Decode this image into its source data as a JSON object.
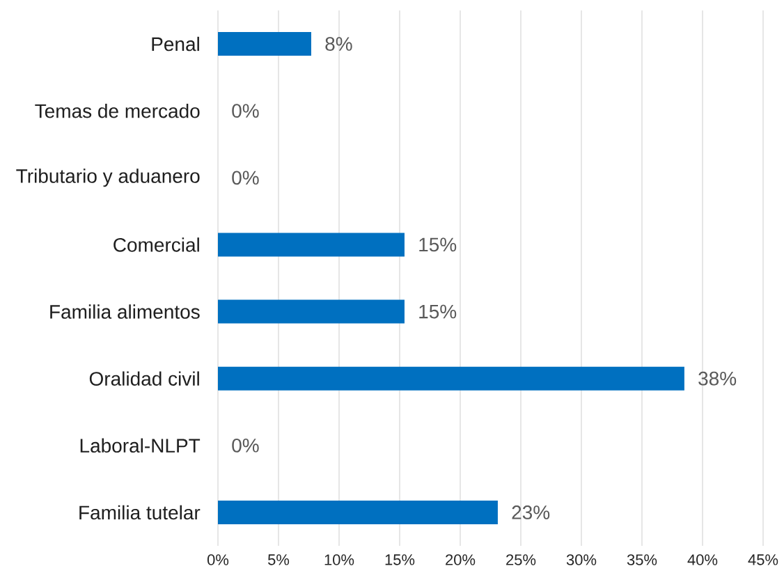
{
  "chart_data": {
    "type": "bar",
    "orientation": "horizontal",
    "categories": [
      "Penal",
      "Temas de mercado",
      "Tributario y aduanero",
      "Comercial",
      "Familia alimentos",
      "Oralidad civil",
      "Laboral-NLPT",
      "Familia tutelar"
    ],
    "values": [
      7.7,
      0,
      0,
      15.4,
      15.4,
      38.5,
      0,
      23.1
    ],
    "value_labels": [
      "8%",
      "0%",
      "0%",
      "15%",
      "15%",
      "38%",
      "0%",
      "23%"
    ],
    "color": "#0070c0",
    "xlim": [
      0,
      45
    ],
    "xticks": [
      {
        "value": 0,
        "label": "0%"
      },
      {
        "value": 5,
        "label": "5%"
      },
      {
        "value": 10,
        "label": "10%"
      },
      {
        "value": 15,
        "label": "15%"
      },
      {
        "value": 20,
        "label": "20%"
      },
      {
        "value": 25,
        "label": "25%"
      },
      {
        "value": 30,
        "label": "30%"
      },
      {
        "value": 35,
        "label": "35%"
      },
      {
        "value": 40,
        "label": "40%"
      },
      {
        "value": 45,
        "label": "45%"
      }
    ],
    "grid": "x"
  }
}
